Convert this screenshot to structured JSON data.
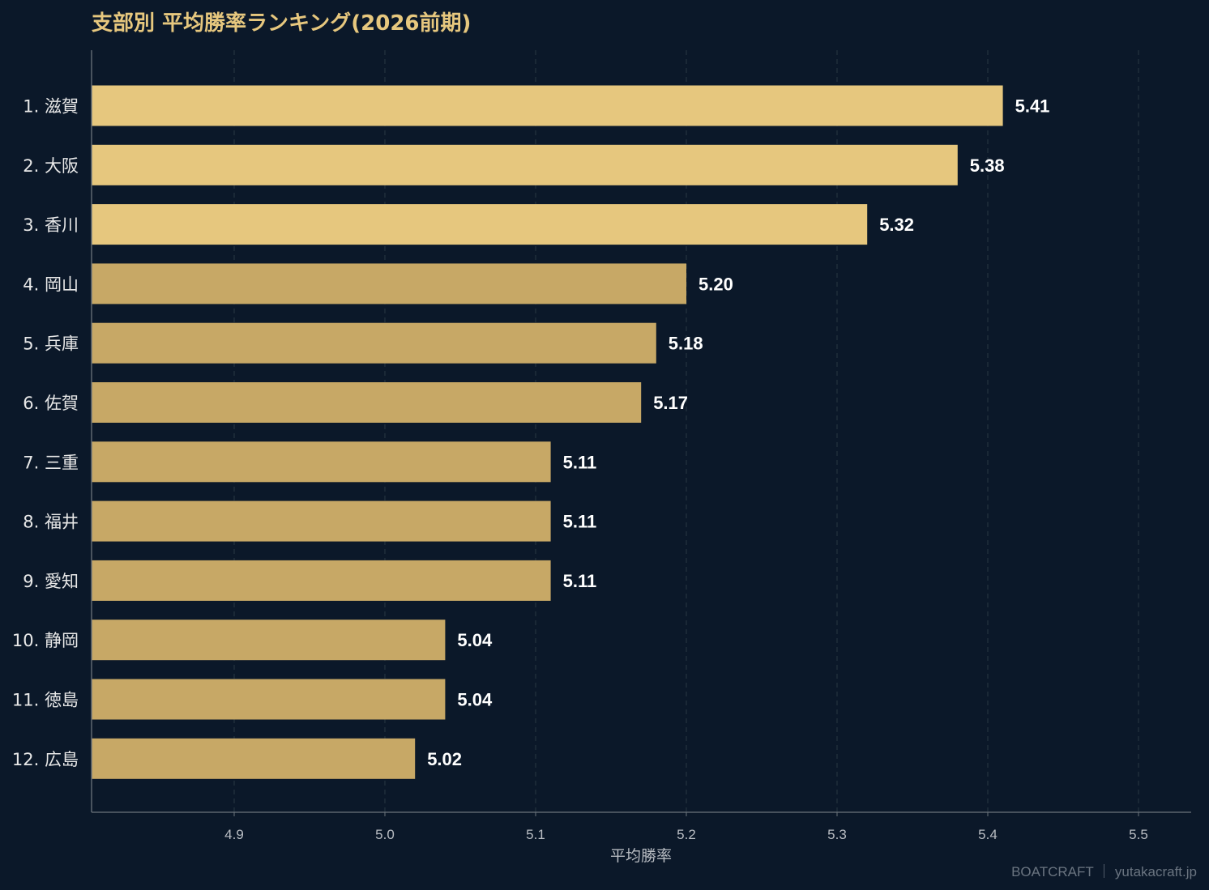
{
  "chart_data": {
    "type": "bar",
    "orientation": "horizontal",
    "title": "支部別 平均勝率ランキング(2026前期)",
    "xlabel": "平均勝率",
    "ylabel": "",
    "xlim": [
      4.805,
      5.535
    ],
    "ticks": [
      "4.9",
      "5.0",
      "5.1",
      "5.2",
      "5.3",
      "5.4",
      "5.5"
    ],
    "tick_values": [
      4.9,
      5.0,
      5.1,
      5.2,
      5.3,
      5.4,
      5.5
    ],
    "categories": [
      "1. 滋賀",
      "2. 大阪",
      "3. 香川",
      "4. 岡山",
      "5. 兵庫",
      "6. 佐賀",
      "7. 三重",
      "8. 福井",
      "9. 愛知",
      "10. 静岡",
      "11. 徳島",
      "12. 広島"
    ],
    "values": [
      5.41,
      5.38,
      5.32,
      5.2,
      5.18,
      5.17,
      5.11,
      5.11,
      5.11,
      5.04,
      5.04,
      5.02
    ],
    "value_labels": [
      "5.41",
      "5.38",
      "5.32",
      "5.20",
      "5.18",
      "5.17",
      "5.11",
      "5.11",
      "5.11",
      "5.04",
      "5.04",
      "5.02"
    ],
    "grid": "vertical dashed",
    "legend": "none",
    "colors": {
      "top3": "#e6c77e",
      "others": "#c7a866",
      "background": "#0b1829",
      "grid": "#243240",
      "title": "#e6c77e"
    }
  },
  "credit": "BOATCRAFT ｜ yutakacraft.jp"
}
